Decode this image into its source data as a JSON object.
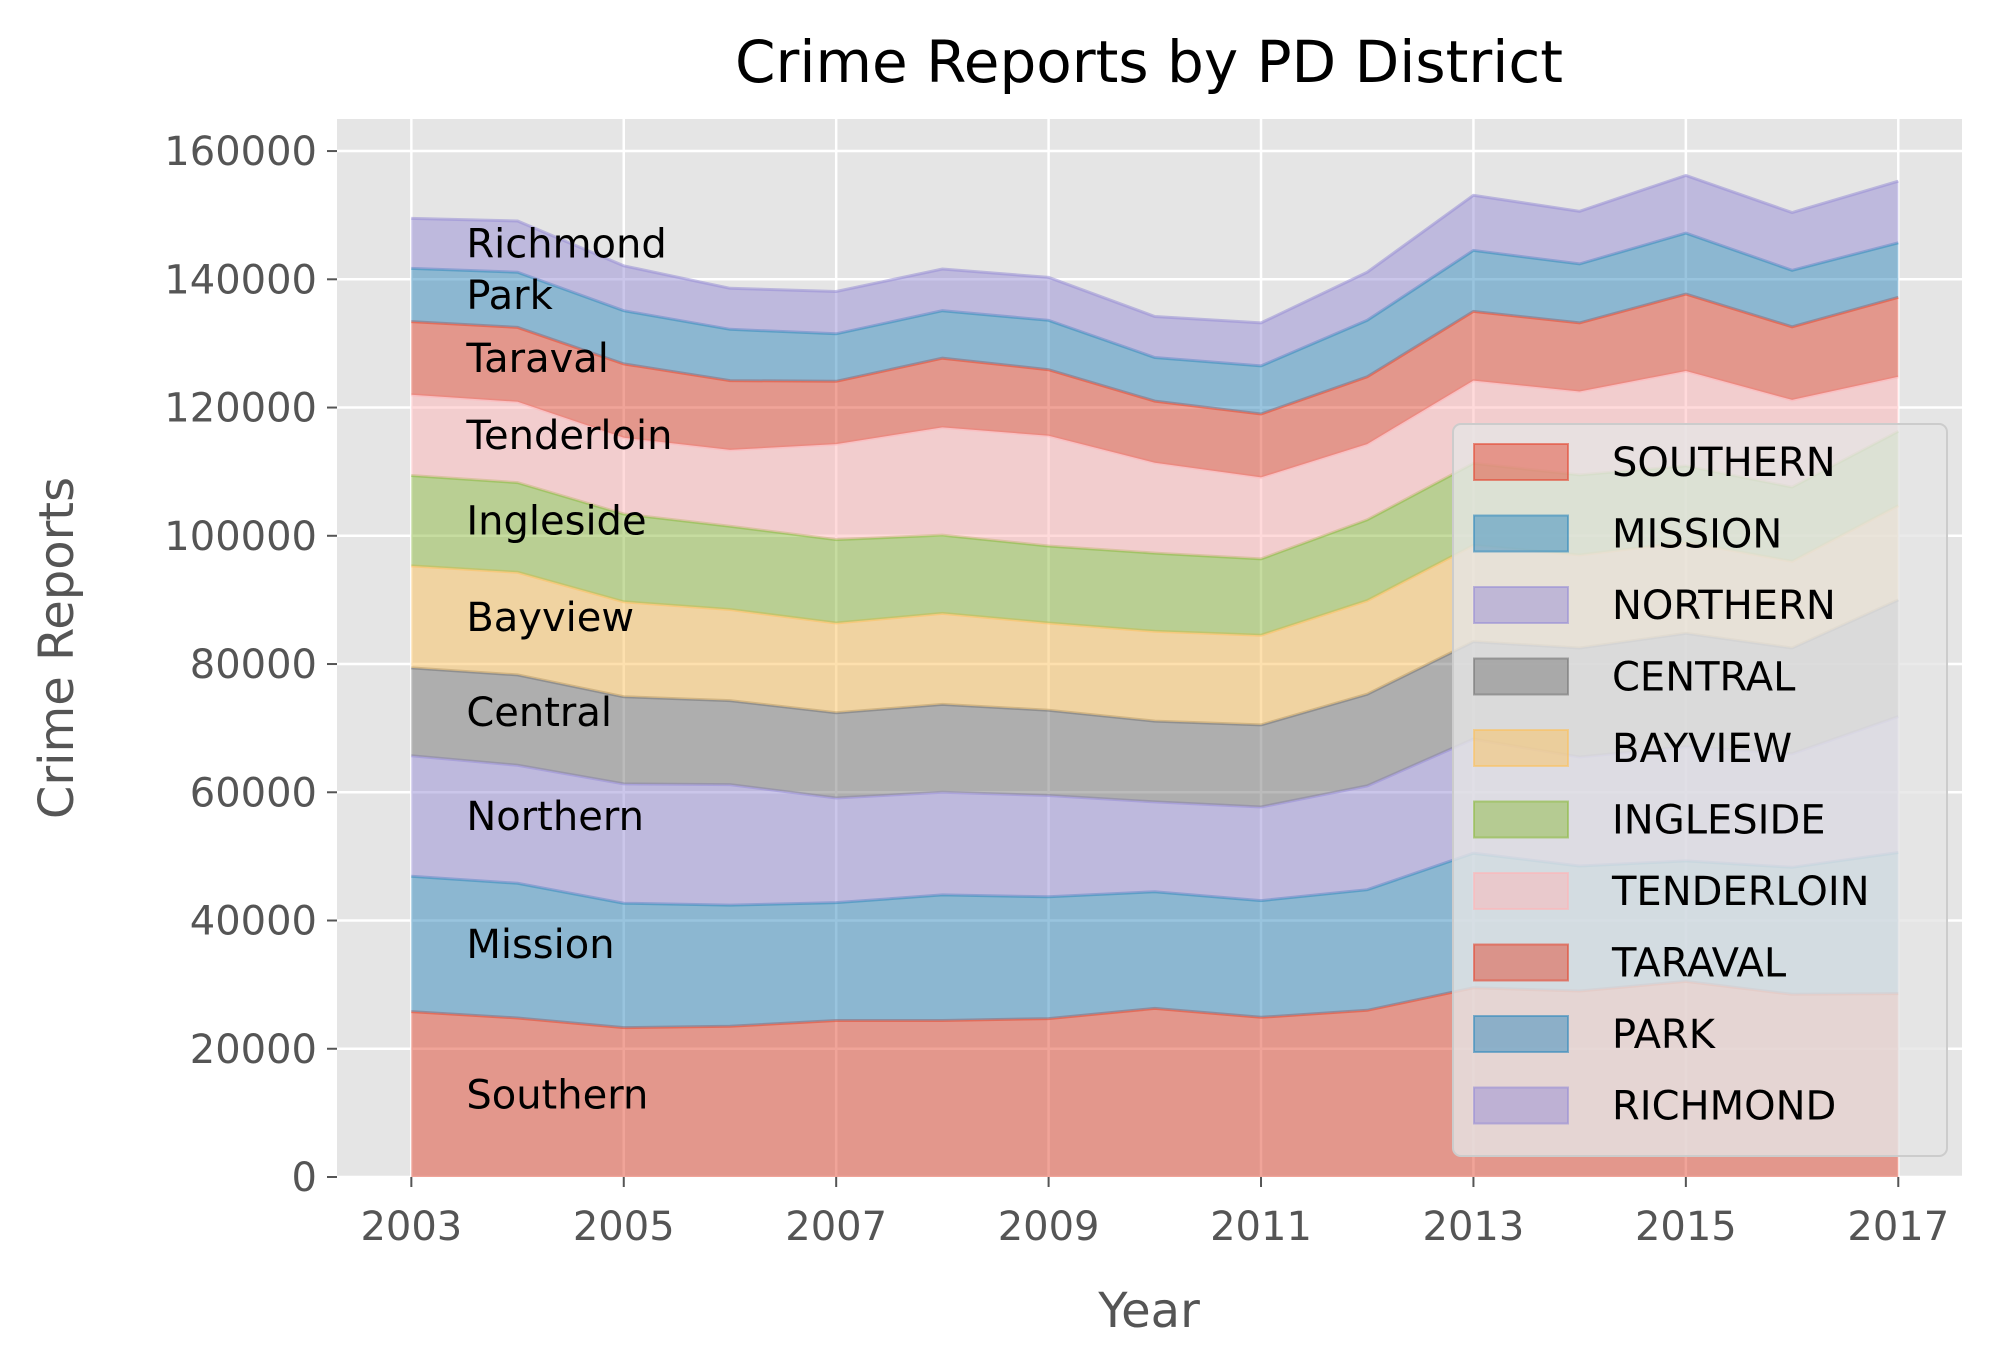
{
  "chart_data": {
    "type": "area",
    "stacked": true,
    "title": "Crime Reports by PD District",
    "xlabel": "Year",
    "ylabel": "Crime Reports",
    "xlim": [
      2002.3,
      2017.6
    ],
    "ylim": [
      0,
      165000
    ],
    "x_ticks": [
      "2003",
      "2005",
      "2007",
      "2009",
      "2011",
      "2013",
      "2015",
      "2017"
    ],
    "y_ticks": [
      "0",
      "20000",
      "40000",
      "60000",
      "80000",
      "100000",
      "120000",
      "140000",
      "160000"
    ],
    "grid": true,
    "legend_position": "lower-right",
    "x": [
      2003,
      2004,
      2005,
      2006,
      2007,
      2008,
      2009,
      2010,
      2011,
      2012,
      2013,
      2014,
      2015,
      2016,
      2017
    ],
    "series": [
      {
        "name": "SOUTHERN",
        "label": "Southern",
        "color": "#E24A33",
        "values": [
          25800,
          24800,
          23300,
          23500,
          24400,
          24400,
          24700,
          26300,
          24900,
          26000,
          29500,
          29000,
          30500,
          28500,
          28600
        ]
      },
      {
        "name": "MISSION",
        "label": "Mission",
        "color": "#348ABD",
        "values": [
          21100,
          21000,
          19400,
          18900,
          18400,
          19600,
          19000,
          18200,
          18200,
          18800,
          21000,
          19500,
          18800,
          19800,
          22000
        ]
      },
      {
        "name": "NORTHERN",
        "label": "Northern",
        "color": "#988ED5",
        "values": [
          18800,
          18400,
          18600,
          18800,
          16300,
          16000,
          15800,
          14000,
          14600,
          16200,
          17800,
          17000,
          17800,
          17700,
          21200
        ]
      },
      {
        "name": "CENTRAL",
        "label": "Central",
        "color": "#777777",
        "values": [
          13700,
          14100,
          13600,
          13100,
          13300,
          13700,
          13300,
          12600,
          12800,
          14300,
          15200,
          17000,
          17700,
          16500,
          18200
        ]
      },
      {
        "name": "BAYVIEW",
        "label": "Bayview",
        "color": "#FBC15E",
        "values": [
          15900,
          16000,
          14800,
          14200,
          14000,
          14200,
          13600,
          14000,
          14000,
          14600,
          15000,
          14500,
          14200,
          13500,
          14700
        ]
      },
      {
        "name": "INGLESIDE",
        "label": "Ingleside",
        "color": "#8EBA42",
        "values": [
          14100,
          14000,
          13700,
          13000,
          13000,
          12200,
          12000,
          12200,
          11900,
          12600,
          12800,
          12500,
          11900,
          11600,
          11600
        ]
      },
      {
        "name": "TENDERLOIN",
        "label": "Tenderloin",
        "color": "#FFB5B8",
        "values": [
          12600,
          12600,
          11900,
          11900,
          14900,
          16800,
          17200,
          14100,
          12700,
          11800,
          12900,
          13000,
          14800,
          13600,
          8500
        ]
      },
      {
        "name": "TARAVAL",
        "label": "Taraval",
        "color": "#E24A33",
        "values": [
          11400,
          11600,
          11500,
          10800,
          9800,
          10800,
          10300,
          9600,
          9900,
          10500,
          10800,
          10700,
          12000,
          11400,
          12400
        ]
      },
      {
        "name": "PARK",
        "label": "Park",
        "color": "#348ABD",
        "values": [
          8300,
          8600,
          8300,
          8000,
          7400,
          7400,
          7700,
          6800,
          7500,
          8800,
          9500,
          9200,
          9500,
          8800,
          8500
        ]
      },
      {
        "name": "RICHMOND",
        "label": "Richmond",
        "color": "#988ED5",
        "values": [
          7800,
          8000,
          7000,
          6400,
          6600,
          6500,
          6700,
          6400,
          6700,
          7500,
          8600,
          8200,
          9000,
          9000,
          9600
        ]
      }
    ]
  }
}
